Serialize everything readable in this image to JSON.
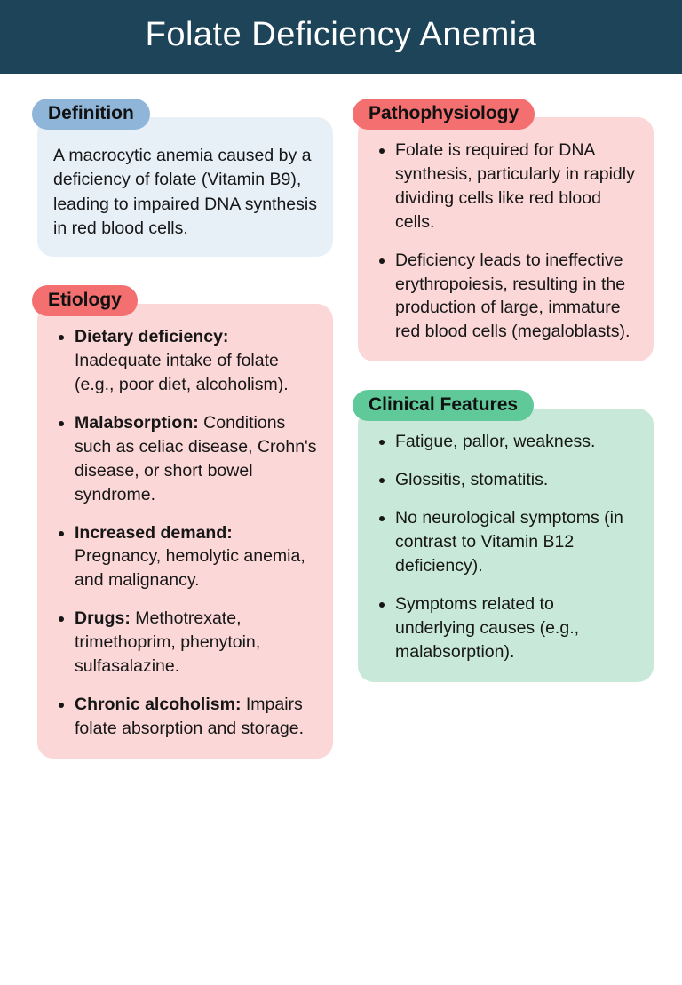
{
  "header": {
    "title": "Folate Deficiency Anemia",
    "bg": "#1e4459",
    "fg": "#ffffff"
  },
  "colors": {
    "label_blue": "#8fb5d9",
    "label_red": "#f47070",
    "label_green": "#5fc99a",
    "body_blue": "#e7eff7",
    "body_red": "#fbd7d7",
    "body_green": "#c8e9d9",
    "text": "#161616"
  },
  "sections": {
    "definition": {
      "label": "Definition",
      "label_style": "blue",
      "body_style": "blue",
      "text": "A macrocytic anemia caused by a deficiency of folate (Vitamin B9), leading to impaired DNA synthesis in red blood cells."
    },
    "etiology": {
      "label": "Etiology",
      "label_style": "red",
      "body_style": "red",
      "items": [
        {
          "term": "Dietary deficiency:",
          "desc": " Inadequate intake of folate (e.g., poor diet, alcoholism)."
        },
        {
          "term": "Malabsorption:",
          "desc": " Conditions such as celiac disease, Crohn's disease, or short bowel syndrome."
        },
        {
          "term": "Increased demand:",
          "desc": " Pregnancy, hemolytic anemia, and malignancy."
        },
        {
          "term": "Drugs:",
          "desc": " Methotrexate, trimethoprim, phenytoin, sulfasalazine."
        },
        {
          "term": "Chronic alcoholism:",
          "desc": " Impairs folate absorption and storage."
        }
      ]
    },
    "pathophysiology": {
      "label": "Pathophysiology",
      "label_style": "red",
      "body_style": "red",
      "items": [
        {
          "term": "",
          "desc": "Folate is required for DNA synthesis, particularly in rapidly dividing cells like red blood cells."
        },
        {
          "term": "",
          "desc": "Deficiency leads to ineffective erythropoiesis, resulting in the production of large, immature red blood cells (megaloblasts)."
        }
      ]
    },
    "clinical": {
      "label": "Clinical Features",
      "label_style": "green",
      "body_style": "green",
      "items": [
        {
          "term": "",
          "desc": "Fatigue, pallor, weakness."
        },
        {
          "term": "",
          "desc": "Glossitis, stomatitis."
        },
        {
          "term": "",
          "desc": "No neurological symptoms (in contrast to Vitamin B12 deficiency)."
        },
        {
          "term": "",
          "desc": "Symptoms related to underlying causes (e.g., malabsorption)."
        }
      ]
    }
  }
}
